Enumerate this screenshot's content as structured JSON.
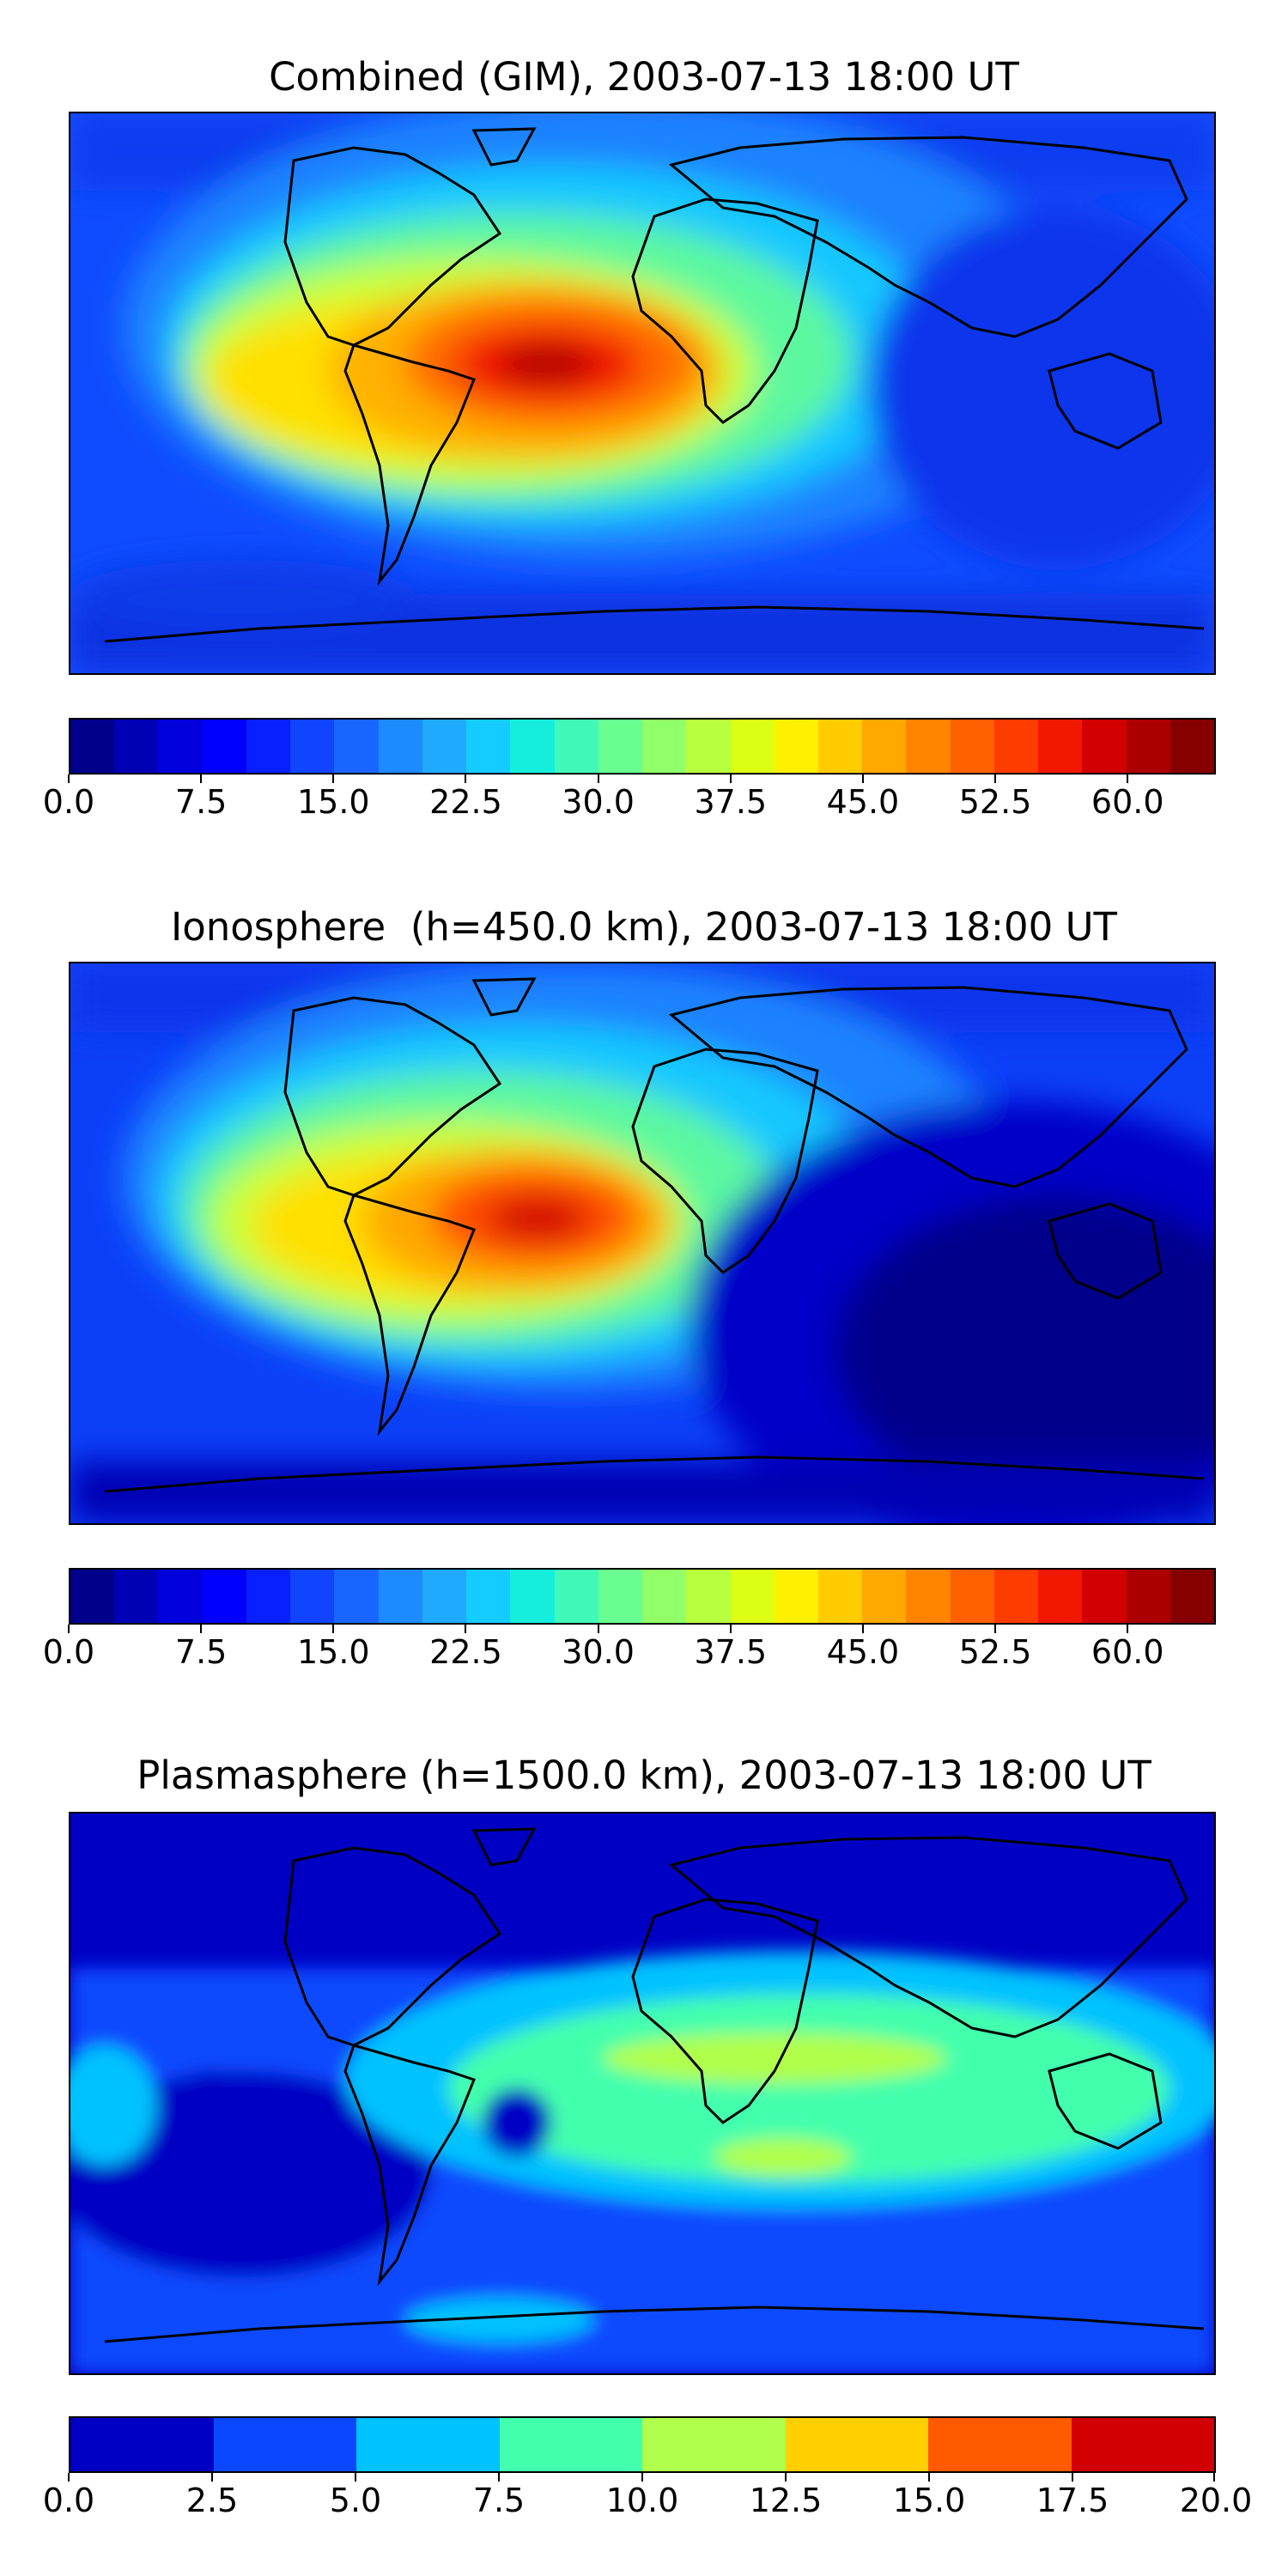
{
  "palettes": {
    "tec": [
      "#00008b",
      "#0000b4",
      "#0000dc",
      "#0000ff",
      "#0820ff",
      "#1044ff",
      "#1866ff",
      "#1e8aff",
      "#20aaff",
      "#14ccff",
      "#16eedd",
      "#40f8b8",
      "#68ff90",
      "#90ff68",
      "#b8ff40",
      "#ddff14",
      "#fff000",
      "#ffcc00",
      "#ffa800",
      "#ff8400",
      "#ff6000",
      "#ff3c00",
      "#f21800",
      "#d20000",
      "#ac0000",
      "#860000"
    ],
    "plasma": [
      "#0000c4",
      "#0a48ff",
      "#00c2ff",
      "#42ffad",
      "#b0ff4c",
      "#ffcf00",
      "#ff5a00",
      "#d20000"
    ]
  },
  "chart_data": [
    {
      "type": "heatmap",
      "title": "Combined (GIM), 2003-07-13 18:00 UT",
      "colorbar": {
        "range": [
          0,
          65
        ],
        "levels": 26,
        "ticks": [
          0,
          7.5,
          15,
          22.5,
          30,
          37.5,
          45,
          52.5,
          60
        ],
        "tick_labels": [
          "0.0",
          "7.5",
          "15.0",
          "22.5",
          "30.0",
          "37.5",
          "45.0",
          "52.5",
          "60.0"
        ]
      },
      "grid": false,
      "features": [
        {
          "region": "background",
          "value": 11
        },
        {
          "region": "equatorial-atlantic-anomaly",
          "value": 44
        },
        {
          "region": "peak-northern-south-america",
          "value": 63
        },
        {
          "region": "polar-south",
          "value": 7
        }
      ]
    },
    {
      "type": "heatmap",
      "title": "Ionosphere  (h=450.0 km), 2003-07-13 18:00 UT",
      "colorbar": {
        "range": [
          0,
          65
        ],
        "levels": 26,
        "ticks": [
          0,
          7.5,
          15,
          22.5,
          30,
          37.5,
          45,
          52.5,
          60
        ],
        "tick_labels": [
          "0.0",
          "7.5",
          "15.0",
          "22.5",
          "30.0",
          "37.5",
          "45.0",
          "52.5",
          "60.0"
        ]
      },
      "grid": false,
      "features": [
        {
          "region": "background",
          "value": 9
        },
        {
          "region": "equatorial-atlantic-anomaly",
          "value": 40
        },
        {
          "region": "peak-northern-south-america",
          "value": 60
        },
        {
          "region": "night-side-indian-pacific",
          "value": 3
        }
      ]
    },
    {
      "type": "heatmap",
      "title": "Plasmasphere (h=1500.0 km), 2003-07-13 18:00 UT",
      "colorbar": {
        "range": [
          0,
          20
        ],
        "levels": 8,
        "ticks": [
          0,
          2.5,
          5,
          7.5,
          10,
          12.5,
          15,
          17.5,
          20
        ],
        "tick_labels": [
          "0.0",
          "2.5",
          "5.0",
          "7.5",
          "10.0",
          "12.5",
          "15.0",
          "17.5",
          "20.0"
        ]
      },
      "grid": false,
      "features": [
        {
          "region": "background-north",
          "value": 1.5
        },
        {
          "region": "mid-latitude-belt",
          "value": 4
        },
        {
          "region": "africa-indian-ocean-band",
          "value": 9
        },
        {
          "region": "peak-africa-india",
          "value": 11
        }
      ]
    }
  ]
}
